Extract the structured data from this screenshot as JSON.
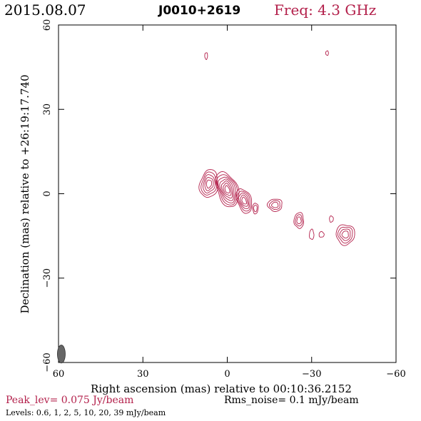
{
  "header": {
    "date": "2015.08.07",
    "source": "J0010+2619",
    "frequency": "Freq: 4.3 GHz"
  },
  "footer": {
    "peak": "Peak_lev=  0.075 Jy/beam",
    "rms": "Rms_noise=  0.1 mJy/beam",
    "levels": "Levels: 0.6,    1,    2,    5,   10,   20,   39  mJy/beam"
  },
  "colors": {
    "contour": "#b3204b",
    "peak_text": "#b3204b",
    "freq_text": "#b3204b",
    "beam": "#666666"
  },
  "chart_data": {
    "type": "contour",
    "title": "J0010+2619",
    "xlabel": "Right ascension (mas) relative to 00:10:36.2152",
    "ylabel": "Declination (mas) relative to +26:19:17.740",
    "xlim": [
      60,
      -60
    ],
    "ylim": [
      -60,
      60
    ],
    "xticks": [
      60,
      30,
      0,
      -30,
      -60
    ],
    "yticks": [
      -60,
      -30,
      0,
      30,
      60
    ],
    "xtick_labels": [
      "60",
      "30",
      "0",
      "−30",
      "−60"
    ],
    "ytick_labels": [
      "−60",
      "−30",
      "0",
      "30",
      "60"
    ],
    "contour_levels_mJy_per_beam": [
      0.6,
      1,
      2,
      5,
      10,
      20,
      39
    ],
    "peak_Jy_per_beam": 0.075,
    "rms_noise_mJy_per_beam": 0.1,
    "beam": {
      "x": 59,
      "y": -57,
      "major": 3.2,
      "minor": 1.4,
      "pa_deg": 0
    },
    "components": [
      {
        "name": "core-west-lobe",
        "x": 6.5,
        "y": 3.5,
        "rx": 3.2,
        "ry": 5.0,
        "rot": 10,
        "levels": 5
      },
      {
        "name": "core-central",
        "x": 0,
        "y": 1.5,
        "rx": 3.6,
        "ry": 6.5,
        "rot": -20,
        "levels": 7
      },
      {
        "name": "core-east-knot",
        "x": -6,
        "y": -2.5,
        "rx": 2.5,
        "ry": 4.5,
        "rot": -20,
        "levels": 5
      },
      {
        "name": "knot-1",
        "x": -10,
        "y": -5.2,
        "rx": 1.0,
        "ry": 1.9,
        "rot": 0,
        "levels": 2
      },
      {
        "name": "knot-2",
        "x": -17,
        "y": -4.0,
        "rx": 2.6,
        "ry": 2.2,
        "rot": 0,
        "levels": 3
      },
      {
        "name": "knot-3",
        "x": -25.5,
        "y": -9.5,
        "rx": 1.7,
        "ry": 2.8,
        "rot": 0,
        "levels": 3
      },
      {
        "name": "knot-4",
        "x": -30,
        "y": -14.5,
        "rx": 0.8,
        "ry": 1.8,
        "rot": 0,
        "levels": 1
      },
      {
        "name": "knot-5",
        "x": -33.5,
        "y": -14.5,
        "rx": 0.9,
        "ry": 1.0,
        "rot": 0,
        "levels": 1
      },
      {
        "name": "knot-6",
        "x": -37,
        "y": -9.0,
        "rx": 0.7,
        "ry": 1.1,
        "rot": 0,
        "levels": 1
      },
      {
        "name": "hotspot",
        "x": -42,
        "y": -14.5,
        "rx": 3.3,
        "ry": 3.6,
        "rot": 0,
        "levels": 4
      },
      {
        "name": "noise-1",
        "x": 7.5,
        "y": 49,
        "rx": 0.5,
        "ry": 1.2,
        "rot": 0,
        "levels": 1
      },
      {
        "name": "noise-2",
        "x": -35.5,
        "y": 50,
        "rx": 0.5,
        "ry": 0.8,
        "rot": 0,
        "levels": 1
      }
    ]
  }
}
